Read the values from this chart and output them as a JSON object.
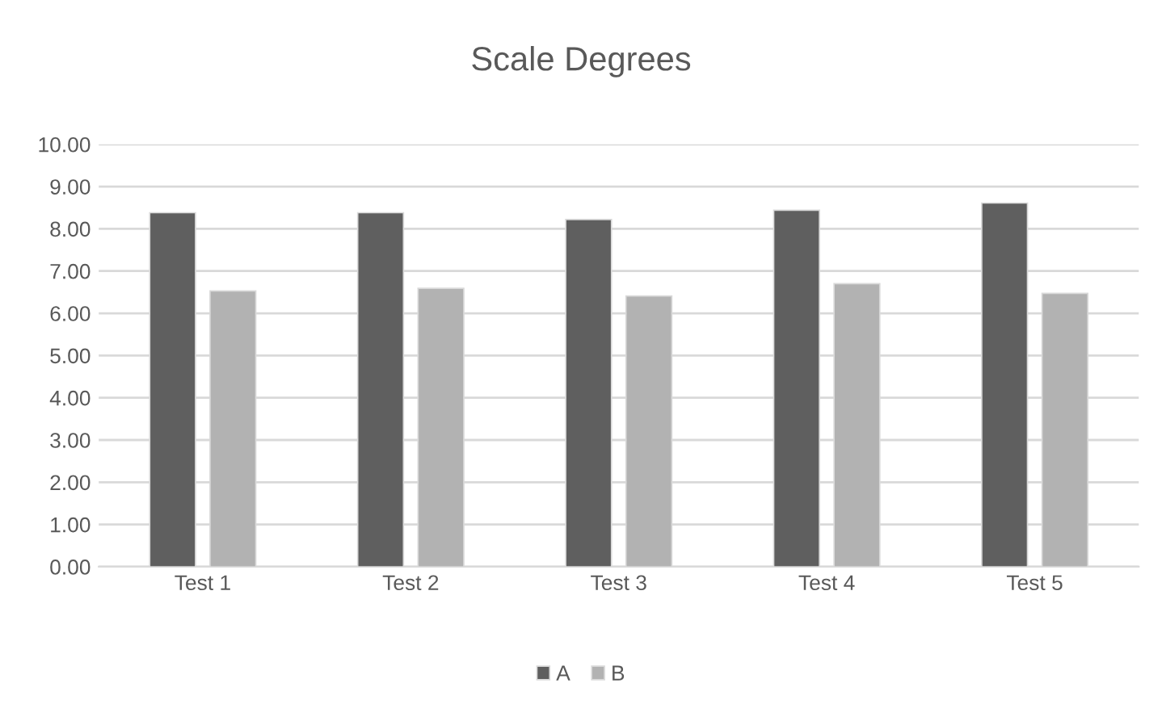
{
  "chart_data": {
    "type": "bar",
    "title": "Scale Degrees",
    "categories": [
      "Test 1",
      "Test 2",
      "Test 3",
      "Test 4",
      "Test 5"
    ],
    "series": [
      {
        "name": "A",
        "color": "#5f5f5f",
        "values": [
          8.38,
          8.38,
          8.22,
          8.44,
          8.61
        ]
      },
      {
        "name": "B",
        "color": "#b2b2b2",
        "values": [
          6.53,
          6.59,
          6.41,
          6.7,
          6.47
        ]
      }
    ],
    "ylim": [
      0,
      10
    ],
    "yticks": [
      {
        "value": 0,
        "label": "0.00"
      },
      {
        "value": 1,
        "label": "1.00"
      },
      {
        "value": 2,
        "label": "2.00"
      },
      {
        "value": 3,
        "label": "3.00"
      },
      {
        "value": 4,
        "label": "4.00"
      },
      {
        "value": 5,
        "label": "5.00"
      },
      {
        "value": 6,
        "label": "6.00"
      },
      {
        "value": 7,
        "label": "7.00"
      },
      {
        "value": 8,
        "label": "8.00"
      },
      {
        "value": 9,
        "label": "9.00"
      },
      {
        "value": 10,
        "label": "10.00"
      }
    ],
    "grid": "y",
    "legend": "bottom"
  }
}
